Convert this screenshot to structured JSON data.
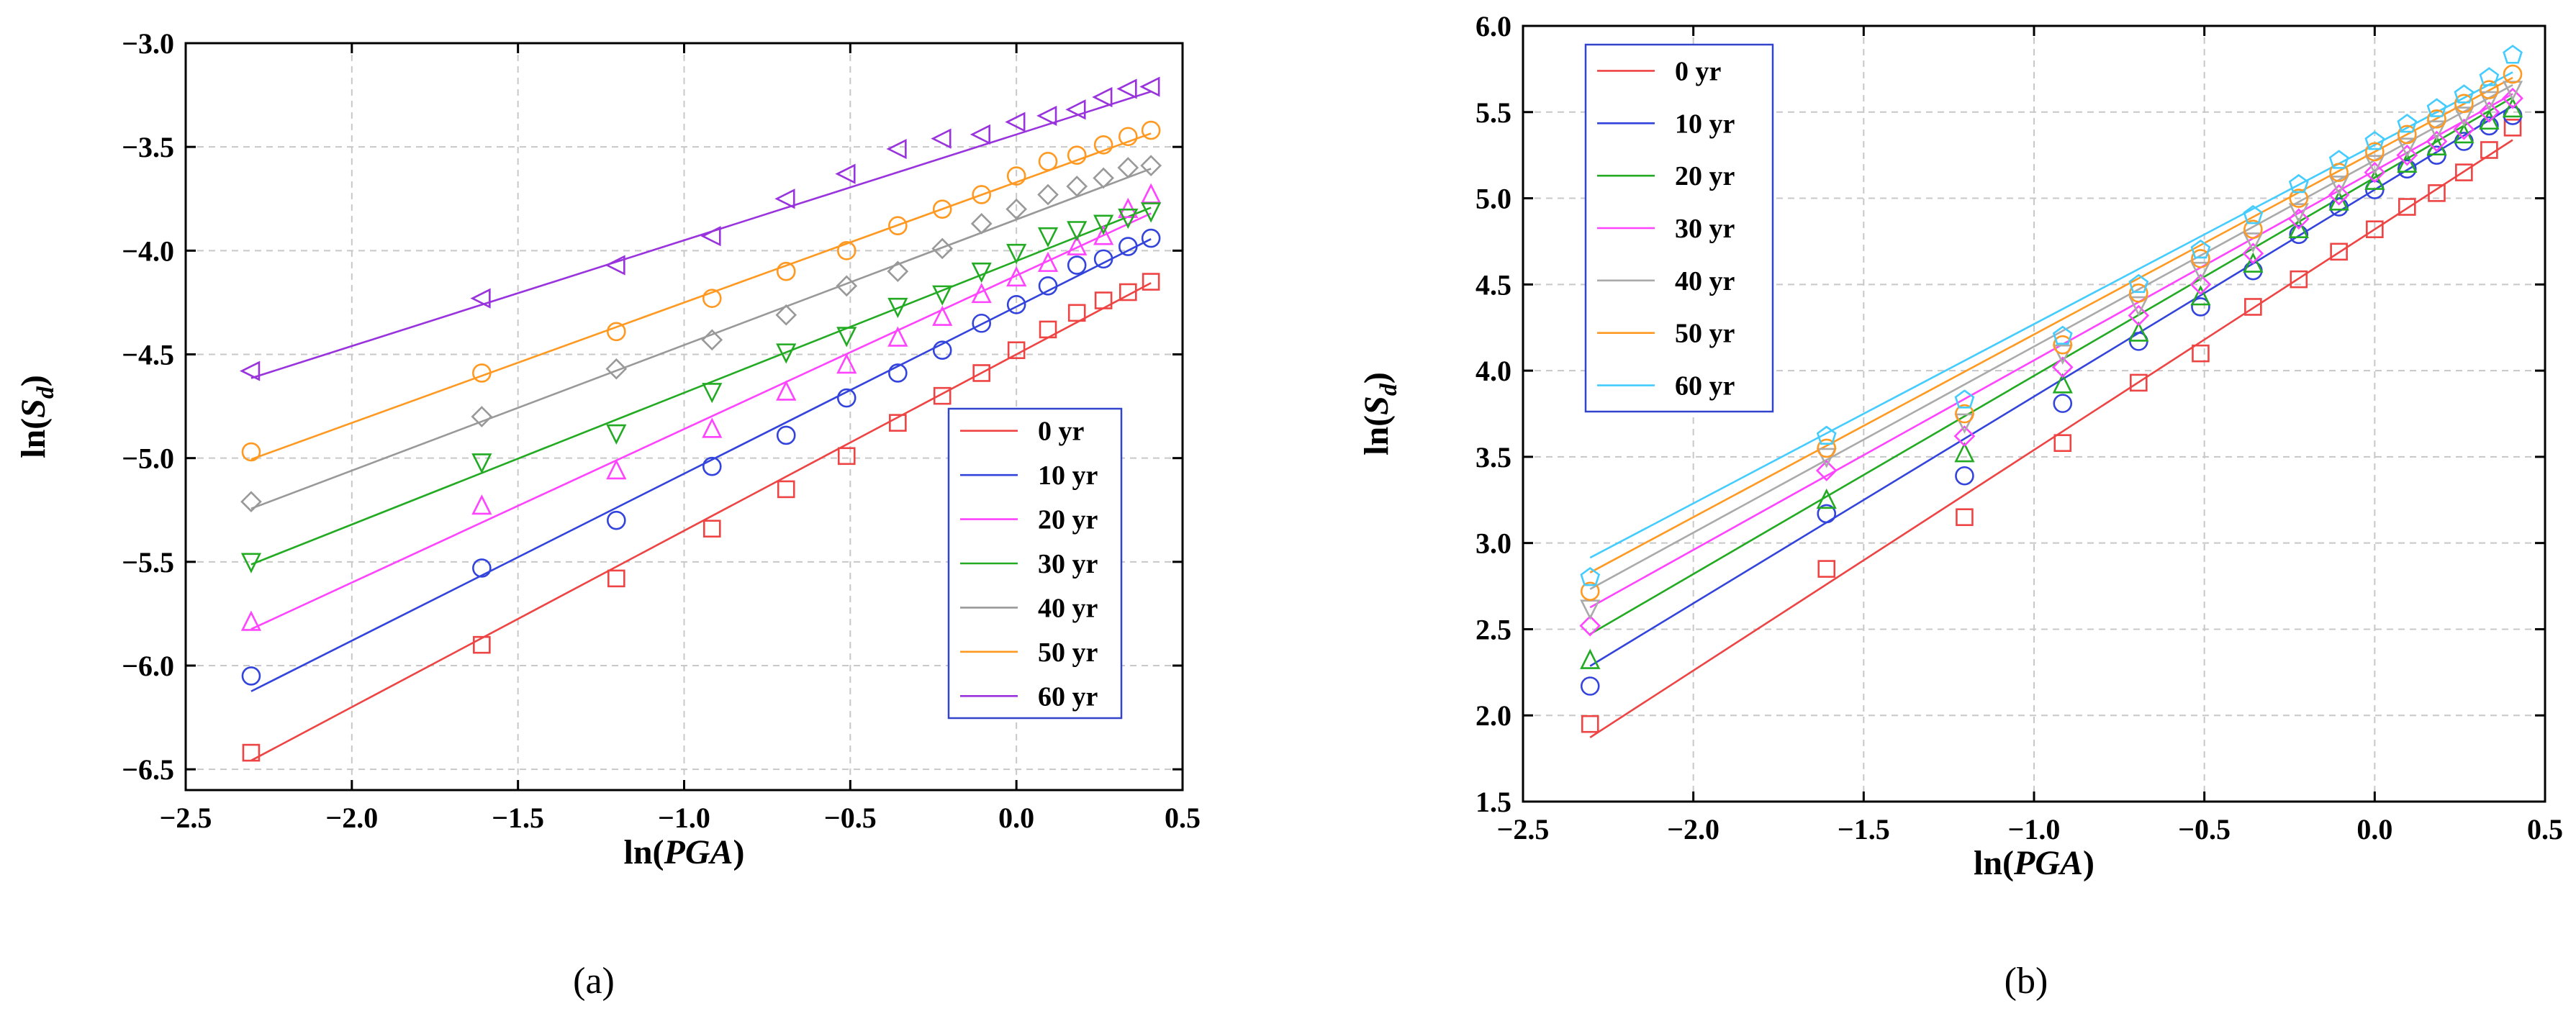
{
  "chart_data": [
    {
      "type": "scatter",
      "panel": "(a)",
      "title": "",
      "xlabel": "ln(PGA)",
      "ylabel": "ln(Sd)",
      "xlim": [
        -2.5,
        0.5
      ],
      "ylim": [
        -6.6,
        -3.0
      ],
      "xticks": [
        -2.5,
        -2.0,
        -1.5,
        -1.0,
        -0.5,
        0.0,
        0.5
      ],
      "xtick_labels": [
        "−2.5",
        "−2.0",
        "−1.5",
        "−1.0",
        "−0.5",
        "0.0",
        "0.5"
      ],
      "yticks": [
        -6.5,
        -6.0,
        -5.5,
        -5.0,
        -4.5,
        -4.0,
        -3.5,
        -3.0
      ],
      "ytick_labels": [
        "−6.5",
        "−6.0",
        "−5.5",
        "−5.0",
        "−4.5",
        "−4.0",
        "−3.5",
        "−3.0"
      ],
      "grid": true,
      "legend_position": "bottom-right",
      "x": [
        -2.303,
        -1.609,
        -1.204,
        -0.916,
        -0.693,
        -0.511,
        -0.357,
        -0.223,
        -0.105,
        0.0,
        0.095,
        0.182,
        0.262,
        0.336,
        0.405
      ],
      "series": [
        {
          "name": "0 yr",
          "color": "#ee4444",
          "marker": "square",
          "slope": 0.85,
          "intercept": -4.5,
          "values": [
            -6.42,
            -5.9,
            -5.58,
            -5.34,
            -5.15,
            -4.99,
            -4.83,
            -4.7,
            -4.59,
            -4.48,
            -4.38,
            -4.3,
            -4.24,
            -4.2,
            -4.15
          ]
        },
        {
          "name": "10 yr",
          "color": "#3344dd",
          "marker": "circle",
          "slope": 0.805,
          "intercept": -4.27,
          "values": [
            -6.05,
            -5.53,
            -5.3,
            -5.04,
            -4.89,
            -4.71,
            -4.59,
            -4.48,
            -4.35,
            -4.26,
            -4.17,
            -4.07,
            -4.04,
            -3.98,
            -3.94
          ]
        },
        {
          "name": "20 yr",
          "color": "#ff44ff",
          "marker": "triangle-up",
          "slope": 0.74,
          "intercept": -4.12,
          "values": [
            -5.79,
            -5.23,
            -5.06,
            -4.86,
            -4.68,
            -4.55,
            -4.42,
            -4.32,
            -4.21,
            -4.13,
            -4.06,
            -3.98,
            -3.93,
            -3.8,
            -3.73
          ]
        },
        {
          "name": "30 yr",
          "color": "#22aa22",
          "marker": "triangle-down",
          "slope": 0.635,
          "intercept": -4.05,
          "values": [
            -5.5,
            -5.02,
            -4.88,
            -4.68,
            -4.49,
            -4.41,
            -4.27,
            -4.21,
            -4.1,
            -4.01,
            -3.93,
            -3.9,
            -3.87,
            -3.84,
            -3.81
          ]
        },
        {
          "name": "40 yr",
          "color": "#999999",
          "marker": "diamond",
          "slope": 0.605,
          "intercept": -3.85,
          "values": [
            -5.21,
            -4.8,
            -4.57,
            -4.43,
            -4.31,
            -4.17,
            -4.1,
            -3.99,
            -3.87,
            -3.8,
            -3.73,
            -3.69,
            -3.65,
            -3.6,
            -3.59
          ]
        },
        {
          "name": "50 yr",
          "color": "#ff9922",
          "marker": "circle",
          "slope": 0.58,
          "intercept": -3.67,
          "values": [
            -4.97,
            -4.59,
            -4.39,
            -4.23,
            -4.1,
            -4.0,
            -3.88,
            -3.8,
            -3.73,
            -3.64,
            -3.57,
            -3.54,
            -3.49,
            -3.45,
            -3.42
          ]
        },
        {
          "name": "60 yr",
          "color": "#9933dd",
          "marker": "triangle-left",
          "slope": 0.51,
          "intercept": -3.44,
          "values": [
            -4.58,
            -4.23,
            -4.07,
            -3.93,
            -3.75,
            -3.63,
            -3.51,
            -3.46,
            -3.44,
            -3.38,
            -3.35,
            -3.32,
            -3.26,
            -3.22,
            -3.21
          ]
        }
      ]
    },
    {
      "type": "scatter",
      "panel": "(b)",
      "title": "",
      "xlabel": "ln(PGA)",
      "ylabel": "ln(Sd)",
      "xlim": [
        -2.5,
        0.5
      ],
      "ylim": [
        1.5,
        6.0
      ],
      "xticks": [
        -2.5,
        -2.0,
        -1.5,
        -1.0,
        -0.5,
        0.0,
        0.5
      ],
      "xtick_labels": [
        "−2.5",
        "−2.0",
        "−1.5",
        "−1.0",
        "−0.5",
        "0.0",
        "0.5"
      ],
      "yticks": [
        1.5,
        2.0,
        2.5,
        3.0,
        3.5,
        4.0,
        4.5,
        5.0,
        5.5,
        6.0
      ],
      "ytick_labels": [
        "1.5",
        "2.0",
        "2.5",
        "3.0",
        "3.5",
        "4.0",
        "4.5",
        "5.0",
        "5.5",
        "6.0"
      ],
      "grid": true,
      "legend_position": "top-left",
      "x": [
        -2.303,
        -1.609,
        -1.204,
        -0.916,
        -0.693,
        -0.511,
        -0.357,
        -0.223,
        -0.105,
        0.0,
        0.095,
        0.182,
        0.262,
        0.336,
        0.405
      ],
      "series": [
        {
          "name": "0 yr",
          "color": "#ee4444",
          "marker": "square",
          "slope": 1.28,
          "intercept": 4.82,
          "values": [
            1.95,
            2.85,
            3.15,
            3.58,
            3.93,
            4.1,
            4.37,
            4.53,
            4.69,
            4.82,
            4.95,
            5.03,
            5.15,
            5.28,
            5.41
          ]
        },
        {
          "name": "10 yr",
          "color": "#3344dd",
          "marker": "circle",
          "slope": 1.2,
          "intercept": 5.05,
          "values": [
            2.17,
            3.17,
            3.39,
            3.81,
            4.17,
            4.37,
            4.58,
            4.79,
            4.95,
            5.05,
            5.17,
            5.25,
            5.33,
            5.42,
            5.48
          ]
        },
        {
          "name": "20 yr",
          "color": "#22aa22",
          "marker": "triangle-up",
          "slope": 1.15,
          "intercept": 5.12,
          "values": [
            2.32,
            3.25,
            3.52,
            3.92,
            4.22,
            4.43,
            4.62,
            4.82,
            4.98,
            5.1,
            5.2,
            5.3,
            5.37,
            5.45,
            5.52
          ]
        },
        {
          "name": "30 yr",
          "color": "#ff44ff",
          "marker": "diamond",
          "slope": 1.1,
          "intercept": 5.16,
          "values": [
            2.52,
            3.42,
            3.62,
            4.02,
            4.32,
            4.5,
            4.68,
            4.88,
            5.02,
            5.15,
            5.25,
            5.33,
            5.4,
            5.5,
            5.58
          ]
        },
        {
          "name": "40 yr",
          "color": "#aaaaaa",
          "marker": "triangle-down",
          "slope": 1.08,
          "intercept": 5.22,
          "values": [
            2.62,
            3.5,
            3.7,
            4.1,
            4.38,
            4.58,
            4.75,
            4.92,
            5.08,
            5.2,
            5.3,
            5.4,
            5.48,
            5.57,
            5.63
          ]
        },
        {
          "name": "50 yr",
          "color": "#ff9922",
          "marker": "circle",
          "slope": 1.06,
          "intercept": 5.27,
          "values": [
            2.72,
            3.55,
            3.75,
            4.15,
            4.45,
            4.65,
            4.82,
            5.0,
            5.15,
            5.27,
            5.37,
            5.46,
            5.55,
            5.63,
            5.72
          ]
        },
        {
          "name": "60 yr",
          "color": "#44ccff",
          "marker": "pentagon",
          "slope": 1.04,
          "intercept": 5.31,
          "values": [
            2.8,
            3.62,
            3.83,
            4.2,
            4.5,
            4.7,
            4.9,
            5.08,
            5.22,
            5.33,
            5.43,
            5.52,
            5.6,
            5.7,
            5.83
          ]
        }
      ]
    }
  ]
}
